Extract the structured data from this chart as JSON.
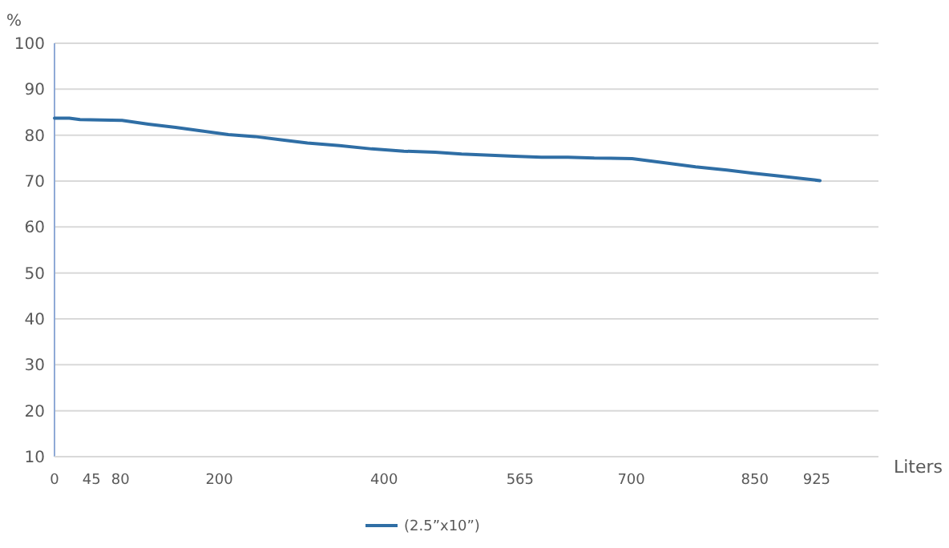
{
  "chart_data": {
    "type": "line",
    "xlabel": "Liters",
    "ylabel": "%",
    "xlim": [
      0,
      1000
    ],
    "xticks": [
      0,
      45,
      80,
      200,
      400,
      565,
      700,
      850,
      925
    ],
    "ylim": [
      10,
      100
    ],
    "yticks": [
      10,
      20,
      30,
      40,
      50,
      60,
      70,
      80,
      90,
      100
    ],
    "grid": "y",
    "legend": "bottom",
    "marker": "none",
    "line_style": "solid",
    "series": [
      {
        "name": "(2.5”x10”)",
        "color": "#2f6ea5",
        "x": [
          0,
          18,
          31,
          56,
          82,
          114,
          147,
          179,
          211,
          243,
          275,
          307,
          346,
          385,
          424,
          462,
          494,
          558,
          591,
          623,
          655,
          701,
          739,
          778,
          816,
          848,
          880,
          929
        ],
        "values": [
          83.7,
          83.7,
          83.4,
          83.3,
          83.2,
          82.4,
          81.7,
          80.9,
          80.1,
          79.7,
          79.0,
          78.3,
          77.7,
          77.0,
          76.5,
          76.3,
          75.9,
          75.4,
          75.2,
          75.2,
          75.0,
          74.9,
          74.0,
          73.1,
          72.4,
          71.7,
          71.1,
          70.1
        ]
      }
    ]
  }
}
